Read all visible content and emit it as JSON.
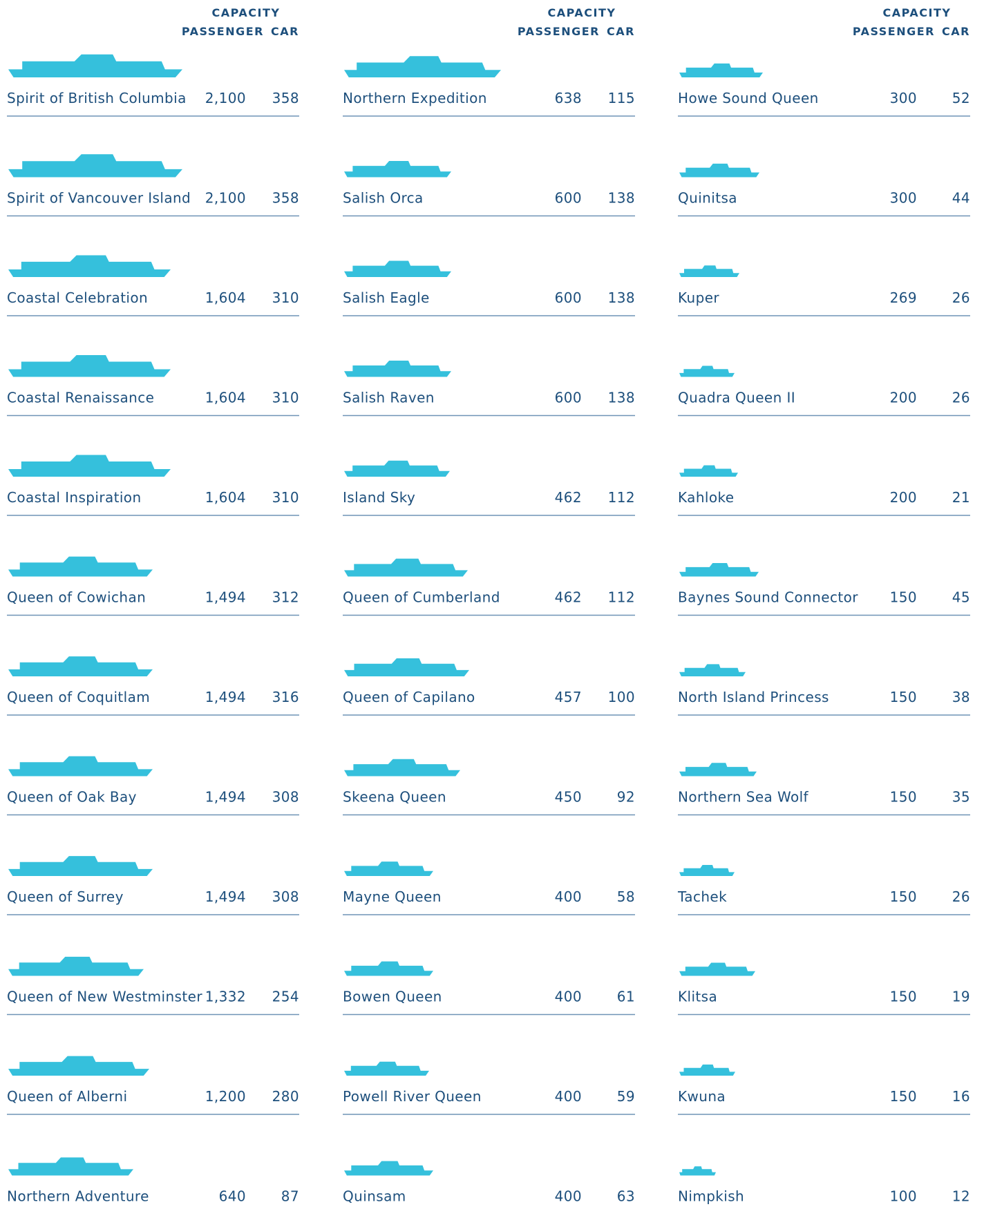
{
  "columns": [
    {
      "header": {
        "capacity": "CAPACITY",
        "passenger": "PASSENGER",
        "car": "CAR"
      },
      "ships": [
        {
          "name": "Spirit of British Columbia",
          "passenger": "2,100",
          "car": "358"
        },
        {
          "name": "Spirit of Vancouver Island",
          "passenger": "2,100",
          "car": "358"
        },
        {
          "name": "Coastal Celebration",
          "passenger": "1,604",
          "car": "310"
        },
        {
          "name": "Coastal Renaissance",
          "passenger": "1,604",
          "car": "310"
        },
        {
          "name": "Coastal Inspiration",
          "passenger": "1,604",
          "car": "310"
        },
        {
          "name": "Queen of Cowichan",
          "passenger": "1,494",
          "car": "312"
        },
        {
          "name": "Queen of Coquitlam",
          "passenger": "1,494",
          "car": "316"
        },
        {
          "name": "Queen of Oak Bay",
          "passenger": "1,494",
          "car": "308"
        },
        {
          "name": "Queen of Surrey",
          "passenger": "1,494",
          "car": "308"
        },
        {
          "name": "Queen of New Westminster",
          "passenger": "1,332",
          "car": "254"
        },
        {
          "name": "Queen of Alberni",
          "passenger": "1,200",
          "car": "280"
        },
        {
          "name": "Northern Adventure",
          "passenger": "640",
          "car": "87"
        }
      ]
    },
    {
      "header": {
        "capacity": "CAPACITY",
        "passenger": "PASSENGER",
        "car": "CAR"
      },
      "ships": [
        {
          "name": "Northern Expedition",
          "passenger": "638",
          "car": "115"
        },
        {
          "name": "Salish Orca",
          "passenger": "600",
          "car": "138"
        },
        {
          "name": "Salish Eagle",
          "passenger": "600",
          "car": "138"
        },
        {
          "name": "Salish Raven",
          "passenger": "600",
          "car": "138"
        },
        {
          "name": "Island Sky",
          "passenger": "462",
          "car": "112"
        },
        {
          "name": "Queen of Cumberland",
          "passenger": "462",
          "car": "112"
        },
        {
          "name": "Queen of Capilano",
          "passenger": "457",
          "car": "100"
        },
        {
          "name": "Skeena Queen",
          "passenger": "450",
          "car": "92"
        },
        {
          "name": "Mayne Queen",
          "passenger": "400",
          "car": "58"
        },
        {
          "name": "Bowen Queen",
          "passenger": "400",
          "car": "61"
        },
        {
          "name": "Powell River Queen",
          "passenger": "400",
          "car": "59"
        },
        {
          "name": "Quinsam",
          "passenger": "400",
          "car": "63"
        }
      ]
    },
    {
      "header": {
        "capacity": "CAPACITY",
        "passenger": "PASSENGER",
        "car": "CAR"
      },
      "ships": [
        {
          "name": "Howe Sound Queen",
          "passenger": "300",
          "car": "52"
        },
        {
          "name": "Quinitsa",
          "passenger": "300",
          "car": "44"
        },
        {
          "name": "Kuper",
          "passenger": "269",
          "car": "26"
        },
        {
          "name": "Quadra Queen II",
          "passenger": "200",
          "car": "26"
        },
        {
          "name": "Kahloke",
          "passenger": "200",
          "car": "21"
        },
        {
          "name": "Baynes Sound Connector",
          "passenger": "150",
          "car": "45"
        },
        {
          "name": "North Island Princess",
          "passenger": "150",
          "car": "38"
        },
        {
          "name": "Northern Sea Wolf",
          "passenger": "150",
          "car": "35"
        },
        {
          "name": "Tachek",
          "passenger": "150",
          "car": "26"
        },
        {
          "name": "Klitsa",
          "passenger": "150",
          "car": "19"
        },
        {
          "name": "Kwuna",
          "passenger": "150",
          "car": "16"
        },
        {
          "name": "Nimpkish",
          "passenger": "100",
          "car": "12"
        }
      ]
    }
  ]
}
